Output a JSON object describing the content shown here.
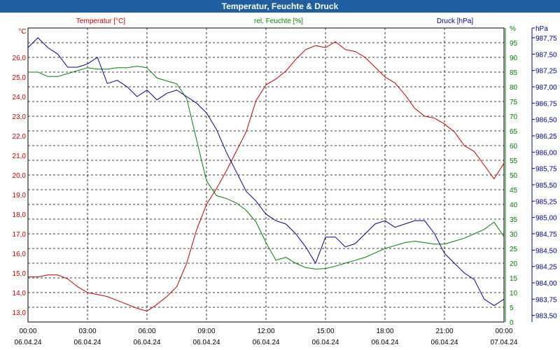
{
  "title": "Temperatur, Feuchte & Druck",
  "chart_data": {
    "type": "line",
    "title": "Temperatur, Feuchte & Druck",
    "grid": true,
    "x_ticks": [
      {
        "time": "00:00",
        "date": "06.04.24"
      },
      {
        "time": "03:00",
        "date": "06.04.24"
      },
      {
        "time": "06:00",
        "date": "06.04.24"
      },
      {
        "time": "09:00",
        "date": "06.04.24"
      },
      {
        "time": "12:00",
        "date": "06.04.24"
      },
      {
        "time": "15:00",
        "date": "06.04.24"
      },
      {
        "time": "18:00",
        "date": "06.04.24"
      },
      {
        "time": "21:00",
        "date": "06.04.24"
      },
      {
        "time": "00:00",
        "date": "07.04.24"
      }
    ],
    "x_range_hours": [
      0,
      24
    ],
    "axes": {
      "left": {
        "unit": "°C",
        "color": "#c00000",
        "ylim": [
          12.5,
          27.5
        ],
        "major": 1,
        "ticks": [
          "13,0",
          "14,0",
          "15,0",
          "16,0",
          "17,0",
          "18,0",
          "19,0",
          "20,0",
          "21,0",
          "22,0",
          "23,0",
          "24,0",
          "25,0",
          "26,0"
        ],
        "tick_values": [
          13,
          14,
          15,
          16,
          17,
          18,
          19,
          20,
          21,
          22,
          23,
          24,
          25,
          26
        ]
      },
      "mid": {
        "unit": "%",
        "color": "#008000",
        "ylim": [
          0,
          100
        ],
        "major": 5,
        "ticks": [
          "0",
          "5",
          "10",
          "15",
          "20",
          "25",
          "30",
          "35",
          "40",
          "45",
          "50",
          "55",
          "60",
          "65",
          "70",
          "75",
          "80",
          "85",
          "90",
          "95",
          "%"
        ],
        "tick_values": [
          0,
          5,
          10,
          15,
          20,
          25,
          30,
          35,
          40,
          45,
          50,
          55,
          60,
          65,
          70,
          75,
          80,
          85,
          90,
          95,
          100
        ]
      },
      "right": {
        "unit": "hPa",
        "color": "#00008b",
        "ylim": [
          983.4,
          987.9
        ],
        "major": 0.25,
        "ticks": [
          "983,50",
          "983,75",
          "984,00",
          "984,25",
          "984,50",
          "984,75",
          "985,00",
          "985,25",
          "985,50",
          "985,75",
          "986,00",
          "986,25",
          "986,50",
          "986,75",
          "987,00",
          "987,25",
          "987,50",
          "987,75",
          "hPa"
        ],
        "tick_values": [
          983.5,
          983.75,
          984,
          984.25,
          984.5,
          984.75,
          985,
          985.25,
          985.5,
          985.75,
          986,
          986.25,
          986.5,
          986.75,
          987,
          987.25,
          987.5,
          987.75,
          987.9
        ]
      }
    },
    "series": [
      {
        "name": "Temperatur [°C]",
        "axis": "left",
        "color": "#c00000",
        "points": [
          [
            0,
            14.8
          ],
          [
            0.5,
            14.8
          ],
          [
            1,
            14.9
          ],
          [
            1.5,
            14.9
          ],
          [
            2,
            14.7
          ],
          [
            2.5,
            14.3
          ],
          [
            3,
            14
          ],
          [
            3.5,
            13.9
          ],
          [
            4,
            13.8
          ],
          [
            4.5,
            13.6
          ],
          [
            5,
            13.4
          ],
          [
            5.5,
            13.2
          ],
          [
            6,
            13.05
          ],
          [
            6.5,
            13.4
          ],
          [
            7,
            13.8
          ],
          [
            7.5,
            14.3
          ],
          [
            8,
            15.5
          ],
          [
            8.5,
            17.2
          ],
          [
            9,
            18.5
          ],
          [
            9.5,
            19.3
          ],
          [
            10,
            20.2
          ],
          [
            10.5,
            21.2
          ],
          [
            11,
            22.2
          ],
          [
            11.5,
            23.8
          ],
          [
            12,
            24.6
          ],
          [
            12.5,
            24.9
          ],
          [
            13,
            25.3
          ],
          [
            13.5,
            25.9
          ],
          [
            14,
            26.4
          ],
          [
            14.5,
            26.6
          ],
          [
            15,
            26.5
          ],
          [
            15.5,
            26.8
          ],
          [
            16,
            26.4
          ],
          [
            16.5,
            26.3
          ],
          [
            17,
            26
          ],
          [
            17.5,
            25.5
          ],
          [
            18,
            25
          ],
          [
            18.5,
            24.7
          ],
          [
            19,
            24.1
          ],
          [
            19.5,
            23.4
          ],
          [
            20,
            23
          ],
          [
            20.5,
            22.9
          ],
          [
            21,
            22.6
          ],
          [
            21.5,
            22.2
          ],
          [
            22,
            21.5
          ],
          [
            22.5,
            21.2
          ],
          [
            23,
            20.5
          ],
          [
            23.5,
            19.8
          ],
          [
            24,
            20.6
          ]
        ]
      },
      {
        "name": "rel. Feuchte [%]",
        "axis": "mid",
        "color": "#008000",
        "points": [
          [
            0,
            85
          ],
          [
            0.5,
            85
          ],
          [
            1,
            83.5
          ],
          [
            1.5,
            83.5
          ],
          [
            2,
            84.5
          ],
          [
            2.5,
            85.5
          ],
          [
            3,
            86.5
          ],
          [
            3.5,
            86
          ],
          [
            4,
            86
          ],
          [
            4.5,
            86.5
          ],
          [
            5,
            86.5
          ],
          [
            5.5,
            87
          ],
          [
            6,
            86.5
          ],
          [
            6.5,
            83
          ],
          [
            7,
            82
          ],
          [
            7.5,
            81
          ],
          [
            8,
            76
          ],
          [
            8.5,
            62
          ],
          [
            9,
            48
          ],
          [
            9.5,
            43
          ],
          [
            10,
            42
          ],
          [
            10.5,
            40.5
          ],
          [
            11,
            38
          ],
          [
            11.5,
            34
          ],
          [
            12,
            27
          ],
          [
            12.5,
            21
          ],
          [
            13,
            22
          ],
          [
            13.5,
            20
          ],
          [
            14,
            18.5
          ],
          [
            14.5,
            18
          ],
          [
            15,
            18.2
          ],
          [
            15.5,
            19
          ],
          [
            16,
            20
          ],
          [
            16.5,
            21
          ],
          [
            17,
            22
          ],
          [
            17.5,
            23.5
          ],
          [
            18,
            25
          ],
          [
            18.5,
            26
          ],
          [
            19,
            27
          ],
          [
            19.5,
            27.5
          ],
          [
            20,
            27
          ],
          [
            20.5,
            26.5
          ],
          [
            21,
            26.5
          ],
          [
            21.5,
            27.5
          ],
          [
            22,
            28.5
          ],
          [
            22.5,
            30
          ],
          [
            23,
            31.5
          ],
          [
            23.5,
            34
          ],
          [
            24,
            29
          ]
        ]
      },
      {
        "name": "Druck [hPa]",
        "axis": "right",
        "color": "#00008b",
        "points": [
          [
            0,
            987.6
          ],
          [
            0.5,
            987.75
          ],
          [
            1,
            987.6
          ],
          [
            1.5,
            987.5
          ],
          [
            2,
            987.3
          ],
          [
            2.5,
            987.3
          ],
          [
            3,
            987.35
          ],
          [
            3.5,
            987.45
          ],
          [
            4,
            987.05
          ],
          [
            4.5,
            987.1
          ],
          [
            5,
            987.0
          ],
          [
            5.5,
            986.85
          ],
          [
            6,
            986.95
          ],
          [
            6.5,
            986.8
          ],
          [
            7,
            986.9
          ],
          [
            7.5,
            986.95
          ],
          [
            8,
            986.85
          ],
          [
            8.5,
            986.75
          ],
          [
            9,
            986.6
          ],
          [
            9.5,
            986.35
          ],
          [
            10,
            986.0
          ],
          [
            10.5,
            985.7
          ],
          [
            11,
            985.4
          ],
          [
            11.5,
            985.25
          ],
          [
            12,
            985.05
          ],
          [
            12.5,
            984.95
          ],
          [
            13,
            984.9
          ],
          [
            13.5,
            984.75
          ],
          [
            14,
            984.55
          ],
          [
            14.5,
            984.3
          ],
          [
            15,
            984.7
          ],
          [
            15.5,
            984.7
          ],
          [
            16,
            984.55
          ],
          [
            16.5,
            984.6
          ],
          [
            17,
            984.75
          ],
          [
            17.5,
            984.9
          ],
          [
            18,
            984.95
          ],
          [
            18.5,
            984.85
          ],
          [
            19,
            984.9
          ],
          [
            19.5,
            984.95
          ],
          [
            20,
            984.95
          ],
          [
            20.5,
            984.75
          ],
          [
            21,
            984.45
          ],
          [
            21.5,
            984.3
          ],
          [
            22,
            984.15
          ],
          [
            22.5,
            984.05
          ],
          [
            23,
            983.75
          ],
          [
            23.5,
            983.65
          ],
          [
            24,
            983.75
          ]
        ]
      }
    ]
  }
}
